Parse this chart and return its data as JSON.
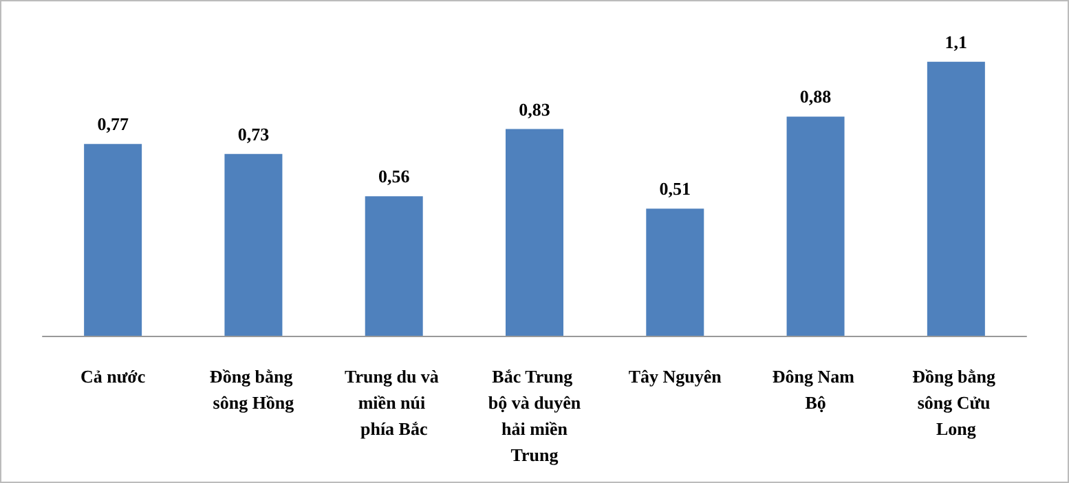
{
  "chart_data": {
    "type": "bar",
    "categories": [
      "Cả nước",
      "Đồng bằng sông Hồng",
      "Trung du và miền núi phía Bắc",
      "Bắc Trung bộ và duyên hải miền Trung",
      "Tây Nguyên",
      "Đông Nam Bộ",
      "Đồng bằng sông Cửu Long"
    ],
    "values": [
      0.77,
      0.73,
      0.56,
      0.83,
      0.51,
      0.88,
      1.1
    ],
    "value_labels": [
      "0,77",
      "0,73",
      "0,56",
      "0,83",
      "0,51",
      "0,88",
      "1,1"
    ],
    "color": "#4f81bd"
  }
}
